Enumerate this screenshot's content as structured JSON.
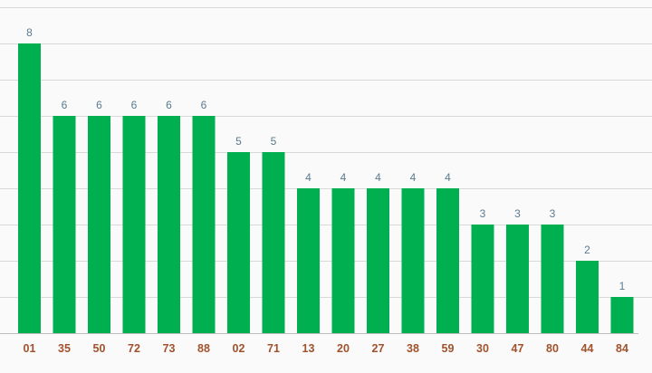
{
  "chart_data": {
    "type": "bar",
    "categories": [
      "01",
      "35",
      "50",
      "72",
      "73",
      "88",
      "02",
      "71",
      "13",
      "20",
      "27",
      "38",
      "59",
      "30",
      "47",
      "80",
      "44",
      "84"
    ],
    "values": [
      8,
      6,
      6,
      6,
      6,
      6,
      5,
      5,
      4,
      4,
      4,
      4,
      4,
      3,
      3,
      3,
      2,
      1
    ],
    "ylim": [
      0,
      9
    ],
    "grid": true,
    "colors": {
      "bar": "#00b050",
      "value_label": "#5b7a8f",
      "category_label": "#a0522d",
      "grid": "#d9d9d9",
      "background": "#fafafa"
    }
  }
}
